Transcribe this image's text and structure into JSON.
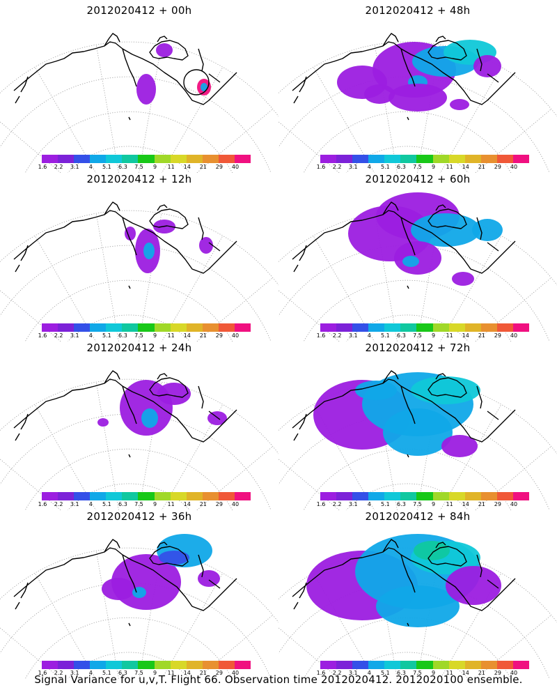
{
  "colorbar": {
    "colors": [
      "#9c1ee0",
      "#7c22d8",
      "#3450e8",
      "#10a8e8",
      "#10c8d8",
      "#10c8a0",
      "#18c818",
      "#a0d828",
      "#d8d828",
      "#e0b428",
      "#e89030",
      "#f05838",
      "#f01080"
    ],
    "labels": [
      "1.6",
      "2.2",
      "3.1",
      "4",
      "5.1",
      "6.3",
      "7.5",
      "9",
      "11",
      "14",
      "21",
      "29",
      "40"
    ]
  },
  "panels": [
    {
      "title": "2012020412 + 00h"
    },
    {
      "title": "2012020412 + 48h"
    },
    {
      "title": "2012020412 + 12h"
    },
    {
      "title": "2012020412 + 60h"
    },
    {
      "title": "2012020412 + 24h"
    },
    {
      "title": "2012020412 + 72h"
    },
    {
      "title": "2012020412 + 36h"
    },
    {
      "title": "2012020412 + 84h"
    }
  ],
  "caption": "Signal Variance for u,v,T. Flight 66. Observation time 2012020412. 2012020100 ensemble."
}
